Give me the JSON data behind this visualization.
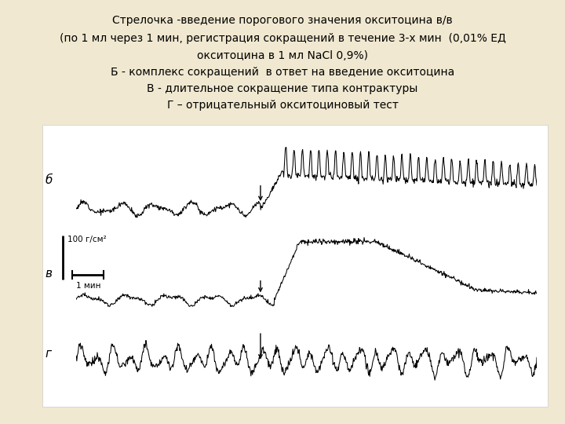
{
  "bg_color": "#f0e8d0",
  "panel_bg": "#f8f4ec",
  "title_lines": [
    "Стрелочка -введение порогового значения окситоцина в/в",
    "(по 1 мл через 1 мин, регистрация сокращений в течение 3-х мин  (0,01% ЕД",
    "окситоцина в 1 мл NaCl 0,9%)",
    "Б - комплекс сокращений  в ответ на введение окситоцина",
    "В - длительное сокращение типа контрактуры",
    "Г – отрицательный окситоциновый тест"
  ],
  "label_b": "б",
  "label_v": "в",
  "label_g": "г",
  "scale_text1": "100 г/см²",
  "scale_text2": "1 мин"
}
